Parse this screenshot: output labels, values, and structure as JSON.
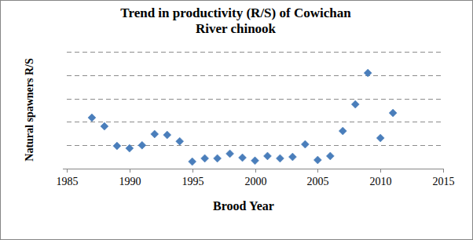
{
  "chart_data": {
    "type": "scatter",
    "title": "Trend in productivity (R/S) of Cowichan River chinook",
    "x_label": "Brood Year",
    "y_label": "Natural spawners R/S",
    "x": [
      1987,
      1988,
      1989,
      1990,
      1991,
      1992,
      1993,
      1994,
      1995,
      1996,
      1997,
      1998,
      1999,
      2000,
      2001,
      2002,
      2003,
      2004,
      2005,
      2006,
      2007,
      2008,
      2009,
      2010,
      2011
    ],
    "values": [
      2.18,
      1.81,
      0.97,
      0.87,
      1.0,
      1.48,
      1.44,
      1.17,
      0.3,
      0.44,
      0.44,
      0.64,
      0.47,
      0.34,
      0.54,
      0.44,
      0.5,
      1.04,
      0.37,
      0.54,
      1.61,
      2.75,
      4.09,
      1.31,
      2.38
    ],
    "color": "#4a7ebb",
    "marker": "diamond",
    "xlim": [
      1985,
      2015
    ],
    "xticks": [
      1985,
      1990,
      1995,
      2000,
      2005,
      2010,
      2015
    ],
    "ylim": [
      0,
      5
    ],
    "yticks": [
      0,
      1,
      2,
      3,
      4,
      5
    ],
    "grid": true,
    "tick_labels": "x"
  }
}
